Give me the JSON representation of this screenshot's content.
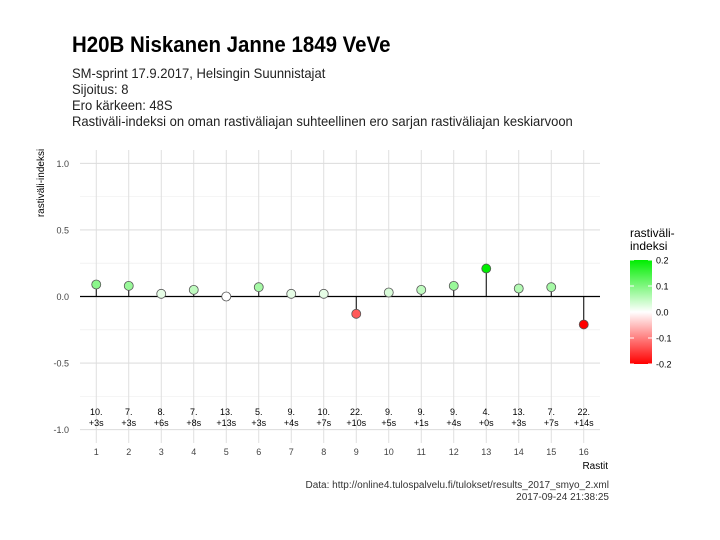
{
  "header": {
    "title": "H20B Niskanen Janne 1849 VeVe",
    "subtitle_lines": [
      "SM-sprint 17.9.2017, Helsingin Suunnistajat",
      "Sijoitus: 8",
      "Ero kärkeen: 48S",
      "Rastiväli-indeksi on oman rastiväliajan suhteellinen ero sarjan rastiväliajan keskiarvoon"
    ]
  },
  "caption": {
    "source": "Data: http://online4.tulospalvelu.fi/tulokset/results_2017_smyo_2.xml",
    "timestamp": "2017-09-24 21:38:25"
  },
  "chart_data": {
    "type": "scatter",
    "xlabel": "Rastit",
    "ylabel": "rastiväli-indeksi",
    "ylim": [
      -1.1,
      1.1
    ],
    "yticks": [
      -1.0,
      -0.5,
      0.0,
      0.5,
      1.0
    ],
    "ytick_labels": [
      "-1.0",
      "-0.5",
      "0.0",
      "0.5",
      "1.0"
    ],
    "x": [
      1,
      2,
      3,
      4,
      5,
      6,
      7,
      8,
      9,
      10,
      11,
      12,
      13,
      14,
      15,
      16
    ],
    "values": [
      0.09,
      0.08,
      0.02,
      0.05,
      0.0,
      0.07,
      0.02,
      0.02,
      -0.13,
      0.03,
      0.05,
      0.08,
      0.21,
      0.06,
      0.07,
      -0.21
    ],
    "rank_labels": [
      "10.",
      "7.",
      "8.",
      "7.",
      "13.",
      "5.",
      "9.",
      "10.",
      "22.",
      "9.",
      "9.",
      "9.",
      "4.",
      "13.",
      "7.",
      "22."
    ],
    "diff_labels": [
      "+3s",
      "+3s",
      "+6s",
      "+8s",
      "+13s",
      "+3s",
      "+4s",
      "+7s",
      "+10s",
      "+5s",
      "+1s",
      "+4s",
      "+0s",
      "+3s",
      "+7s",
      "+14s"
    ],
    "grid": true,
    "legend": {
      "title_lines": [
        "rastiväli-",
        "indeksi"
      ],
      "placement": "right",
      "ticks": [
        0.2,
        0.1,
        0.0,
        -0.1,
        -0.2
      ],
      "tick_labels": [
        "0.2",
        "0.1",
        "0.0",
        "-0.1",
        "-0.2"
      ],
      "range": [
        -0.2,
        0.2
      ],
      "colors": {
        "high": "#00ee00",
        "mid": "#ffffff",
        "low": "#ff0000"
      }
    }
  }
}
